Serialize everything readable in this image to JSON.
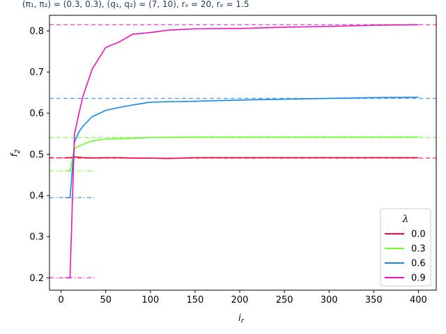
{
  "chart_data": {
    "type": "line",
    "title": "(π₁, π₂) = (0.3, 0.3),  (q₁, q₂) = (7, 10),  rₐ = 20,  rₑ = 1.5",
    "xlabel": "i_r",
    "ylabel": "f₂",
    "xlim": [
      -13,
      420
    ],
    "ylim": [
      0.17,
      0.838
    ],
    "xticks": [
      0,
      50,
      100,
      150,
      200,
      250,
      300,
      350,
      400
    ],
    "yticks": [
      0.2,
      0.3,
      0.4,
      0.5,
      0.6,
      0.7,
      0.8
    ],
    "grid": false,
    "legend": {
      "title": "λ",
      "position": "lower-right"
    },
    "series": [
      {
        "name": "0.0",
        "color": "#ff0033",
        "x": [
          5,
          10,
          15,
          20,
          25,
          35,
          50,
          65,
          80,
          100,
          120,
          150,
          200,
          250,
          300,
          350,
          400
        ],
        "y": [
          0.492,
          0.492,
          0.494,
          0.493,
          0.492,
          0.491,
          0.492,
          0.492,
          0.491,
          0.491,
          0.49,
          0.492,
          0.492,
          0.492,
          0.492,
          0.492,
          0.492
        ],
        "hline": 0.491,
        "init": 0.492
      },
      {
        "name": "0.3",
        "color": "#66ff22",
        "x": [
          5,
          10,
          15,
          20,
          25,
          35,
          50,
          65,
          80,
          100,
          120,
          150,
          200,
          250,
          300,
          350,
          400
        ],
        "y": [
          0.46,
          0.46,
          0.515,
          0.52,
          0.525,
          0.533,
          0.537,
          0.538,
          0.539,
          0.541,
          0.541,
          0.542,
          0.542,
          0.542,
          0.542,
          0.542,
          0.542
        ],
        "hline": 0.541,
        "init": 0.46
      },
      {
        "name": "0.6",
        "color": "#1188ee",
        "x": [
          5,
          10,
          15,
          20,
          25,
          35,
          50,
          65,
          80,
          100,
          120,
          150,
          200,
          250,
          300,
          350,
          400
        ],
        "y": [
          0.395,
          0.395,
          0.53,
          0.555,
          0.57,
          0.592,
          0.607,
          0.614,
          0.62,
          0.627,
          0.628,
          0.629,
          0.632,
          0.634,
          0.636,
          0.638,
          0.639
        ],
        "hline": 0.636,
        "init": 0.395
      },
      {
        "name": "0.9",
        "color": "#ee11bb",
        "x": [
          5,
          10,
          15,
          20,
          25,
          35,
          50,
          65,
          80,
          100,
          120,
          150,
          200,
          250,
          300,
          350,
          400
        ],
        "y": [
          0.2,
          0.2,
          0.55,
          0.6,
          0.645,
          0.708,
          0.76,
          0.773,
          0.792,
          0.796,
          0.802,
          0.805,
          0.806,
          0.809,
          0.811,
          0.814,
          0.815
        ],
        "hline": 0.815,
        "init": 0.2
      }
    ]
  }
}
